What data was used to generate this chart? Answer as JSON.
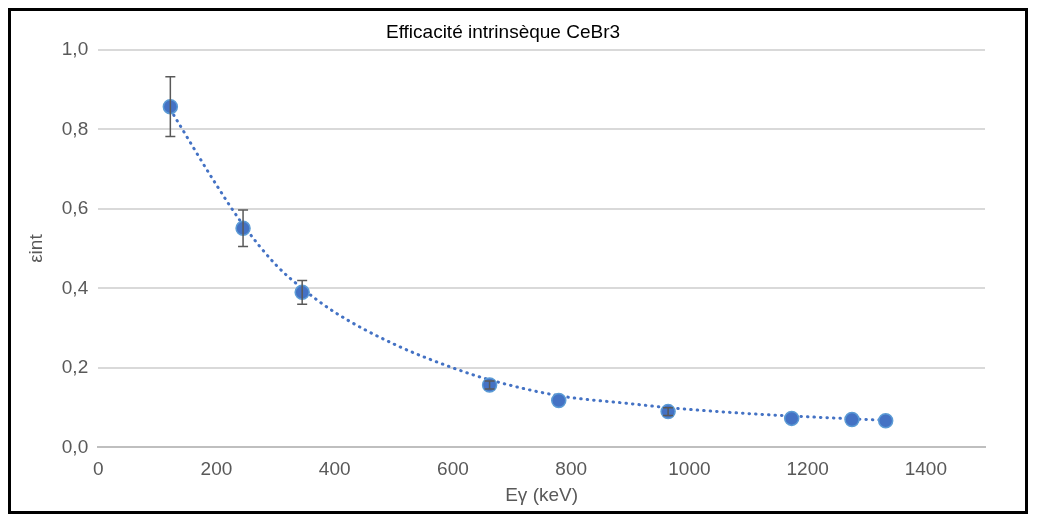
{
  "chart_data": {
    "type": "scatter",
    "title": "Efficacité intrinsèque CeBr3",
    "xlabel": "Eγ (keV)",
    "ylabel": "εint",
    "x": [
      122,
      245,
      345,
      662,
      779,
      964,
      1173,
      1275,
      1332
    ],
    "series": [
      {
        "type": "scatter",
        "color": "#4472c4",
        "values": [
          0.857,
          0.551,
          0.39,
          0.157,
          0.118,
          0.09,
          0.073,
          0.07,
          0.067
        ],
        "errors": [
          0.075,
          0.046,
          0.03,
          0.01,
          null,
          0.01,
          null,
          null,
          null
        ],
        "marker": "circle"
      },
      {
        "type": "line",
        "color": "#4472c4",
        "line_style": "dotted",
        "marker": "none",
        "x": [
          122,
          200,
          245,
          300,
          345,
          400,
          500,
          600,
          662,
          779,
          900,
          964,
          1100,
          1200,
          1332
        ],
        "values": [
          0.85,
          0.66,
          0.56,
          0.46,
          0.4,
          0.34,
          0.26,
          0.2,
          0.17,
          0.13,
          0.11,
          0.1,
          0.085,
          0.077,
          0.068
        ]
      }
    ],
    "xlim": [
      0,
      1500
    ],
    "xticks": [
      0,
      200,
      400,
      600,
      800,
      1000,
      1200,
      1400
    ],
    "ylim": [
      0,
      1
    ],
    "yticks": [
      {
        "value": 0,
        "label": "0,0"
      },
      {
        "value": 0.2,
        "label": "0,2"
      },
      {
        "value": 0.4,
        "label": "0,4"
      },
      {
        "value": 0.6,
        "label": "0,6"
      },
      {
        "value": 0.8,
        "label": "0,8"
      },
      {
        "value": 1,
        "label": "1,0"
      }
    ],
    "grid": "y",
    "legend": false
  }
}
